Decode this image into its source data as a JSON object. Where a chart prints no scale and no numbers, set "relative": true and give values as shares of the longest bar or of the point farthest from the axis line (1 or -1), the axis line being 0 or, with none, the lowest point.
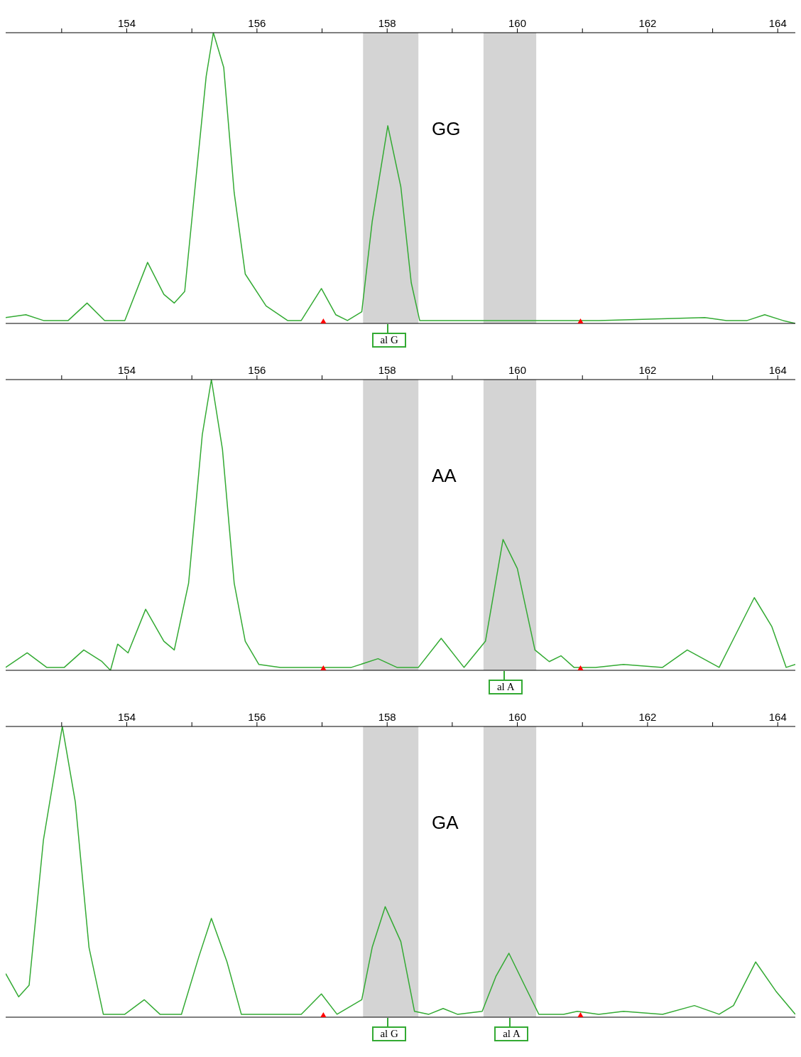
{
  "chart_data": [
    {
      "type": "line",
      "relative": true,
      "xlim": [
        152.14,
        164.27
      ],
      "tick_labels": "x",
      "xticks": [
        {
          "value": 153,
          "label": null
        },
        154,
        {
          "value": 155,
          "label": null
        },
        156,
        {
          "value": 157,
          "label": null
        },
        158,
        {
          "value": 159,
          "label": null
        },
        160,
        {
          "value": 161,
          "label": null
        },
        162,
        {
          "value": 163,
          "label": null
        },
        164
      ],
      "bands": [
        {
          "axis": "x",
          "from": 157.63,
          "to": 158.48,
          "color": "#d4d4d4"
        },
        {
          "axis": "x",
          "from": 159.48,
          "to": 160.29,
          "color": "#d4d4d4"
        }
      ],
      "annotations": [
        "GG",
        {
          "text": "al G",
          "x": 158.01,
          "y": 0
        }
      ],
      "series": [
        {
          "type": "line",
          "color": "#33aa33",
          "marker": "none",
          "x": [
            152.14,
            152.45,
            152.72,
            153.1,
            153.39,
            153.66,
            153.97,
            154.32,
            154.57,
            154.73,
            154.89,
            155.05,
            155.22,
            155.33,
            155.49,
            155.65,
            155.82,
            156.14,
            156.47,
            156.68,
            156.99,
            157.21,
            157.39,
            157.61,
            157.77,
            158.01,
            158.21,
            158.37,
            158.5,
            159.08,
            160.05,
            160.71,
            161.25,
            162.88,
            163.21,
            163.53,
            163.8,
            164.08,
            164.27
          ],
          "values": [
            0.02,
            0.03,
            0.01,
            0.01,
            0.07,
            0.01,
            0.01,
            0.21,
            0.1,
            0.07,
            0.11,
            0.47,
            0.85,
            1,
            0.88,
            0.45,
            0.17,
            0.06,
            0.01,
            0.01,
            0.12,
            0.03,
            0.01,
            0.04,
            0.35,
            0.68,
            0.47,
            0.14,
            0.01,
            0.01,
            0.01,
            0.01,
            0.01,
            0.02,
            0.01,
            0.01,
            0.03,
            0.01,
            0
          ]
        },
        {
          "type": "scatter",
          "color": "#ff0000",
          "marker": "triangle",
          "x": [
            157.02,
            160.97
          ],
          "values": [
            0,
            0
          ]
        }
      ]
    },
    {
      "type": "line",
      "relative": true,
      "xlim": [
        152.14,
        164.27
      ],
      "tick_labels": "x",
      "xticks": [
        {
          "value": 153,
          "label": null
        },
        154,
        {
          "value": 155,
          "label": null
        },
        156,
        {
          "value": 157,
          "label": null
        },
        158,
        {
          "value": 159,
          "label": null
        },
        160,
        {
          "value": 161,
          "label": null
        },
        162,
        {
          "value": 163,
          "label": null
        },
        164
      ],
      "bands": [
        {
          "axis": "x",
          "from": 157.63,
          "to": 158.48,
          "color": "#d4d4d4"
        },
        {
          "axis": "x",
          "from": 159.48,
          "to": 160.29,
          "color": "#d4d4d4"
        }
      ],
      "annotations": [
        "AA",
        {
          "text": "al A",
          "x": 159.8,
          "y": 0
        }
      ],
      "series": [
        {
          "type": "line",
          "color": "#33aa33",
          "marker": "none",
          "x": [
            152.14,
            152.47,
            152.77,
            153.04,
            153.34,
            153.62,
            153.75,
            153.86,
            154.02,
            154.29,
            154.57,
            154.73,
            154.95,
            155.16,
            155.3,
            155.47,
            155.65,
            155.82,
            156.03,
            156.36,
            156.68,
            157.45,
            157.86,
            158.15,
            158.48,
            158.83,
            159.18,
            159.51,
            159.78,
            160.0,
            160.27,
            160.49,
            160.67,
            160.87,
            161.2,
            161.63,
            162.23,
            162.61,
            163.1,
            163.64,
            163.91,
            164.13,
            164.27
          ],
          "values": [
            0.01,
            0.06,
            0.01,
            0.01,
            0.07,
            0.03,
            0,
            0.09,
            0.06,
            0.21,
            0.1,
            0.07,
            0.3,
            0.81,
            1,
            0.76,
            0.3,
            0.1,
            0.02,
            0.01,
            0.01,
            0.01,
            0.04,
            0.01,
            0.01,
            0.11,
            0.01,
            0.1,
            0.45,
            0.35,
            0.07,
            0.03,
            0.05,
            0.01,
            0.01,
            0.02,
            0.01,
            0.07,
            0.01,
            0.25,
            0.15,
            0.01,
            0.02
          ]
        },
        {
          "type": "scatter",
          "color": "#ff0000",
          "marker": "triangle",
          "x": [
            157.02,
            160.97
          ],
          "values": [
            0,
            0
          ]
        }
      ]
    },
    {
      "type": "line",
      "relative": true,
      "xlim": [
        152.14,
        164.27
      ],
      "tick_labels": "x",
      "xticks": [
        {
          "value": 153,
          "label": null
        },
        154,
        {
          "value": 155,
          "label": null
        },
        156,
        {
          "value": 157,
          "label": null
        },
        158,
        {
          "value": 159,
          "label": null
        },
        160,
        {
          "value": 161,
          "label": null
        },
        162,
        {
          "value": 163,
          "label": null
        },
        164
      ],
      "bands": [
        {
          "axis": "x",
          "from": 157.63,
          "to": 158.48,
          "color": "#d4d4d4"
        },
        {
          "axis": "x",
          "from": 159.48,
          "to": 160.29,
          "color": "#d4d4d4"
        }
      ],
      "annotations": [
        "GA",
        {
          "text": "al G",
          "x": 158.01,
          "y": 0
        },
        {
          "text": "al A",
          "x": 159.89,
          "y": 0
        }
      ],
      "series": [
        {
          "type": "line",
          "color": "#33aa33",
          "marker": "none",
          "x": [
            152.14,
            152.34,
            152.5,
            152.72,
            153.01,
            153.21,
            153.42,
            153.64,
            153.97,
            154.27,
            154.51,
            154.84,
            155.11,
            155.3,
            155.54,
            155.76,
            156.36,
            156.68,
            156.99,
            157.23,
            157.61,
            157.77,
            157.97,
            158.21,
            158.42,
            158.64,
            158.86,
            159.08,
            159.46,
            159.67,
            159.87,
            160.11,
            160.33,
            160.71,
            160.92,
            161.25,
            161.63,
            162.23,
            162.72,
            163.1,
            163.32,
            163.66,
            163.97,
            164.27
          ],
          "values": [
            0.15,
            0.07,
            0.11,
            0.61,
            1,
            0.74,
            0.24,
            0.01,
            0.01,
            0.06,
            0.01,
            0.01,
            0.21,
            0.34,
            0.19,
            0.01,
            0.01,
            0.01,
            0.08,
            0.01,
            0.06,
            0.24,
            0.38,
            0.26,
            0.02,
            0.01,
            0.03,
            0.01,
            0.02,
            0.14,
            0.22,
            0.11,
            0.01,
            0.01,
            0.02,
            0.01,
            0.02,
            0.01,
            0.04,
            0.01,
            0.04,
            0.19,
            0.09,
            0.01
          ]
        },
        {
          "type": "scatter",
          "color": "#ff0000",
          "marker": "triangle",
          "x": [
            157.02,
            160.97
          ],
          "values": [
            0,
            0
          ]
        }
      ]
    }
  ]
}
